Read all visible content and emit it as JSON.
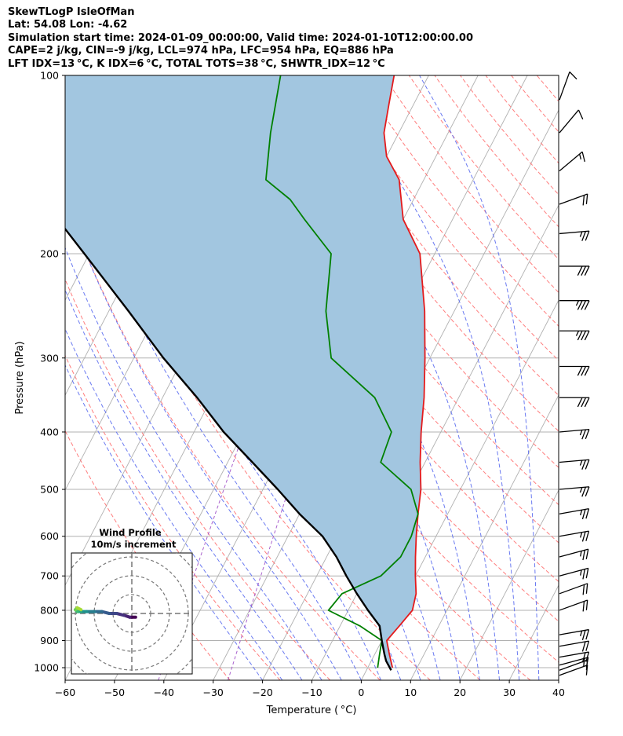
{
  "header": {
    "line1": "SkewTLogP IsleOfMan",
    "line2": "Lat: 54.08   Lon: -4.62",
    "line3": "Simulation start time: 2024-01-09_00:00:00, Valid time: 2024-01-10T12:00:00.00",
    "line4": "CAPE=2 j/kg, CIN=-9 j/kg, LCL=974 hPa, LFC=954 hPa, EQ=886 hPa",
    "line5": "LFT IDX=13 °C, K IDX=6 °C, TOTAL TOTS=38 °C, SHWTR_IDX=12 °C"
  },
  "chart_data": {
    "type": "line",
    "subtype": "skewt-logp",
    "xlabel": "Temperature ( °C)",
    "ylabel": "Pressure (hPa)",
    "xlim": [
      -60,
      40
    ],
    "ylim": [
      1050,
      100
    ],
    "y_scale": "log",
    "xticks": [
      "−60",
      "−50",
      "−40",
      "−30",
      "−20",
      "−10",
      "0",
      "10",
      "20",
      "30",
      "40"
    ],
    "yticks": [
      "100",
      "200",
      "300",
      "400",
      "500",
      "600",
      "700",
      "800",
      "900",
      "1000"
    ],
    "ytick_values": [
      100,
      200,
      300,
      400,
      500,
      600,
      700,
      800,
      900,
      1000
    ],
    "grid": true,
    "colors": {
      "temperature": "#e41a1c",
      "dewpoint": "#008000",
      "parcel": "#000000",
      "cape_fill": "#a2c6e0",
      "dry_adiabat": "#ff6f6f",
      "moist_adiabat": "#5a6cf0",
      "isotherm": "#b0b0b0",
      "mixing_ratio": "#a050c8"
    },
    "series": [
      {
        "key": "temperature",
        "points": [
          [
            5,
            1000
          ],
          [
            3,
            950
          ],
          [
            1,
            900
          ],
          [
            2,
            850
          ],
          [
            3,
            800
          ],
          [
            2,
            750
          ],
          [
            0,
            700
          ],
          [
            -2,
            650
          ],
          [
            -4,
            600
          ],
          [
            -6,
            550
          ],
          [
            -8,
            500
          ],
          [
            -11,
            450
          ],
          [
            -14,
            400
          ],
          [
            -17,
            350
          ],
          [
            -21,
            300
          ],
          [
            -26,
            250
          ],
          [
            -33,
            200
          ],
          [
            -40,
            175
          ],
          [
            -45,
            150
          ],
          [
            -50,
            137
          ],
          [
            -53,
            125
          ],
          [
            -55,
            112
          ],
          [
            -57,
            100
          ]
        ]
      },
      {
        "key": "dewpoint",
        "points": [
          [
            2,
            1000
          ],
          [
            1,
            950
          ],
          [
            0,
            900
          ],
          [
            -6,
            850
          ],
          [
            -14,
            800
          ],
          [
            -13,
            750
          ],
          [
            -7,
            700
          ],
          [
            -5,
            650
          ],
          [
            -5,
            600
          ],
          [
            -6,
            550
          ],
          [
            -10,
            500
          ],
          [
            -19,
            450
          ],
          [
            -20,
            400
          ],
          [
            -27,
            350
          ],
          [
            -40,
            300
          ],
          [
            -46,
            250
          ],
          [
            -51,
            200
          ],
          [
            -60,
            175
          ],
          [
            -65,
            162
          ],
          [
            -72,
            150
          ],
          [
            -76,
            125
          ],
          [
            -80,
            100
          ]
        ]
      },
      {
        "key": "parcel",
        "points": [
          [
            5,
            1010
          ],
          [
            3,
            974
          ],
          [
            2,
            950
          ],
          [
            0,
            900
          ],
          [
            -2,
            850
          ],
          [
            -6,
            800
          ],
          [
            -10,
            750
          ],
          [
            -14,
            700
          ],
          [
            -18,
            650
          ],
          [
            -23,
            600
          ],
          [
            -30,
            550
          ],
          [
            -37,
            500
          ],
          [
            -45,
            450
          ],
          [
            -54,
            400
          ],
          [
            -63,
            350
          ],
          [
            -74,
            300
          ],
          [
            -86,
            250
          ],
          [
            -101,
            200
          ],
          [
            -110,
            175
          ],
          [
            -120,
            150
          ],
          [
            -129,
            130
          ],
          [
            -139,
            112
          ],
          [
            -146,
            100
          ]
        ]
      }
    ],
    "wind_barbs": [
      {
        "p": 1030,
        "speed": 10,
        "dir": 250
      },
      {
        "p": 1010,
        "speed": 15,
        "dir": 250
      },
      {
        "p": 990,
        "speed": 15,
        "dir": 255
      },
      {
        "p": 960,
        "speed": 20,
        "dir": 260
      },
      {
        "p": 920,
        "speed": 20,
        "dir": 260
      },
      {
        "p": 880,
        "speed": 25,
        "dir": 260
      },
      {
        "p": 800,
        "speed": 20,
        "dir": 250
      },
      {
        "p": 750,
        "speed": 20,
        "dir": 250
      },
      {
        "p": 700,
        "speed": 25,
        "dir": 255
      },
      {
        "p": 650,
        "speed": 25,
        "dir": 255
      },
      {
        "p": 600,
        "speed": 25,
        "dir": 260
      },
      {
        "p": 550,
        "speed": 25,
        "dir": 260
      },
      {
        "p": 500,
        "speed": 25,
        "dir": 265
      },
      {
        "p": 450,
        "speed": 25,
        "dir": 265
      },
      {
        "p": 400,
        "speed": 25,
        "dir": 265
      },
      {
        "p": 350,
        "speed": 30,
        "dir": 270
      },
      {
        "p": 310,
        "speed": 30,
        "dir": 270
      },
      {
        "p": 270,
        "speed": 35,
        "dir": 270
      },
      {
        "p": 240,
        "speed": 35,
        "dir": 270
      },
      {
        "p": 210,
        "speed": 30,
        "dir": 270
      },
      {
        "p": 185,
        "speed": 25,
        "dir": 265
      },
      {
        "p": 165,
        "speed": 20,
        "dir": 250
      },
      {
        "p": 145,
        "speed": 15,
        "dir": 230
      },
      {
        "p": 125,
        "speed": 10,
        "dir": 220
      },
      {
        "p": 110,
        "speed": 10,
        "dir": 200
      }
    ],
    "inset": {
      "title": "Wind Profile",
      "subtitle": "10m/s increment",
      "ring_step_ms": 10,
      "hodograph": [
        [
          2,
          -2
        ],
        [
          -1,
          -2
        ],
        [
          -4,
          -1
        ],
        [
          -8,
          0
        ],
        [
          -12,
          0
        ],
        [
          -16,
          1
        ],
        [
          -20,
          1
        ],
        [
          -24,
          1
        ],
        [
          -27,
          1
        ],
        [
          -29,
          1
        ],
        [
          -30,
          2
        ],
        [
          -29,
          3
        ],
        [
          -27,
          2
        ]
      ]
    }
  }
}
